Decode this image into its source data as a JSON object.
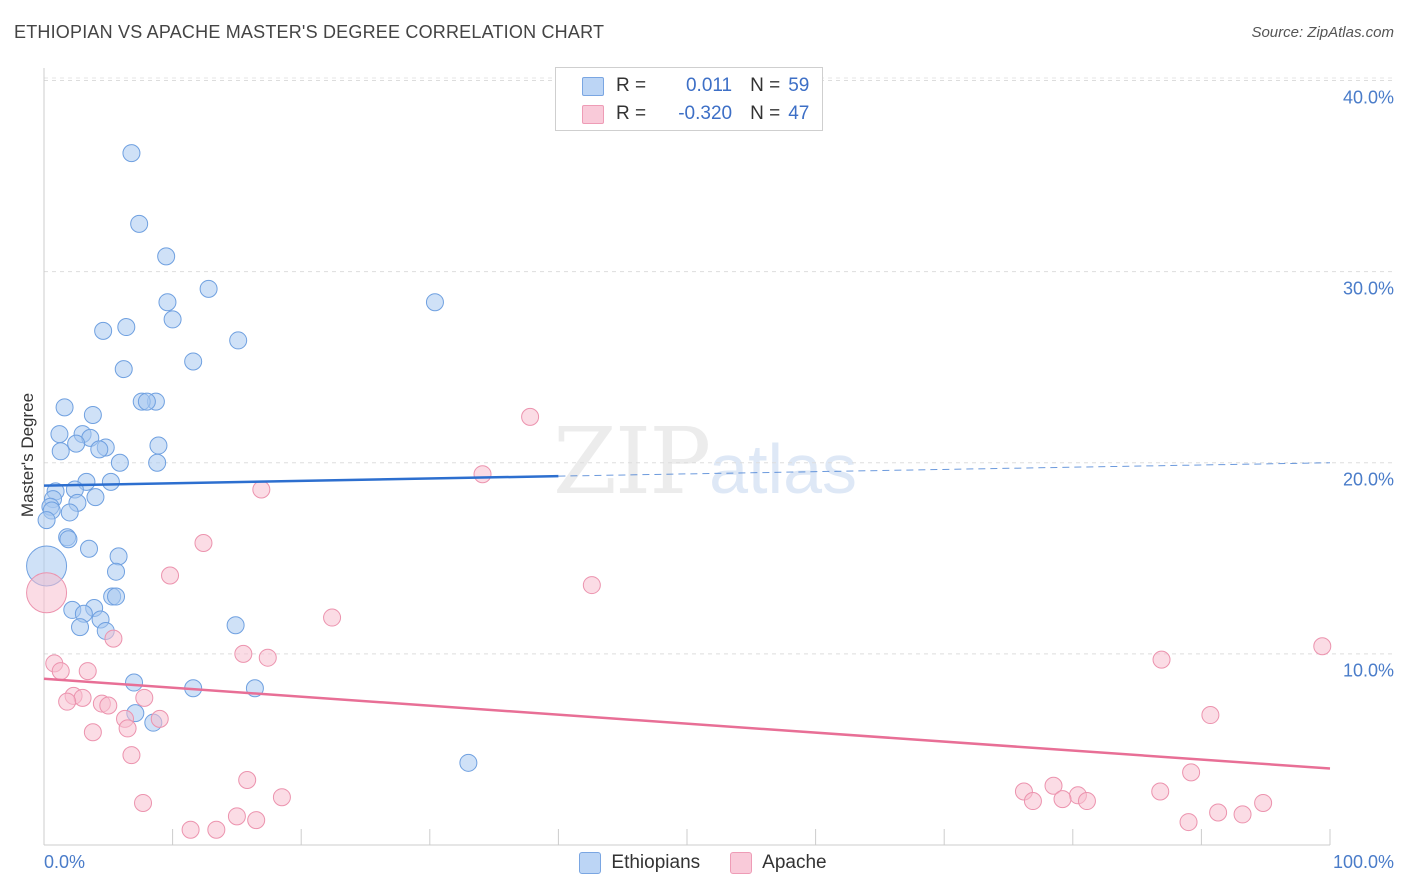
{
  "chart_data": {
    "type": "scatter",
    "title": "ETHIOPIAN VS APACHE MASTER'S DEGREE CORRELATION CHART",
    "source": "Source: ZipAtlas.com",
    "ylabel": "Master's Degree",
    "xlabel": "",
    "xlim": [
      0,
      100
    ],
    "ylim": [
      0,
      40
    ],
    "x_tick_labels": {
      "min": "0.0%",
      "max": "100.0%"
    },
    "y_tick_labels": [
      {
        "value": 10,
        "label": "10.0%"
      },
      {
        "value": 20,
        "label": "20.0%"
      },
      {
        "value": 30,
        "label": "30.0%"
      },
      {
        "value": 40,
        "label": "40.0%"
      }
    ],
    "watermark": {
      "zip": "ZIP",
      "atlas": "atlas"
    },
    "legend": {
      "stats": [
        {
          "r_label": "R =",
          "r_value": "0.011",
          "n_label": "N =",
          "n_value": "59"
        },
        {
          "r_label": "R =",
          "r_value": "-0.320",
          "n_label": "N =",
          "n_value": "47"
        }
      ]
    },
    "series": [
      {
        "name": "Ethiopians",
        "color": "#a8c8f0",
        "stroke": "#6fa0e0",
        "trend_color": "#2d6fcf",
        "trend": {
          "x0": 0,
          "y0": 18.8,
          "x1": 40,
          "y1": 19.3,
          "dash_to": 100,
          "dash_y": 20.0
        },
        "points": [
          [
            6.8,
            36.2
          ],
          [
            7.4,
            32.5
          ],
          [
            9.5,
            30.8
          ],
          [
            12.8,
            29.1
          ],
          [
            9.6,
            28.4
          ],
          [
            30.4,
            28.4
          ],
          [
            10.0,
            27.5
          ],
          [
            6.4,
            27.1
          ],
          [
            4.6,
            26.9
          ],
          [
            15.1,
            26.4
          ],
          [
            11.6,
            25.3
          ],
          [
            6.2,
            24.9
          ],
          [
            8.7,
            23.2
          ],
          [
            7.6,
            23.2
          ],
          [
            8.0,
            23.2
          ],
          [
            1.6,
            22.9
          ],
          [
            3.8,
            22.5
          ],
          [
            1.2,
            21.5
          ],
          [
            3.0,
            21.5
          ],
          [
            3.6,
            21.3
          ],
          [
            2.5,
            21.0
          ],
          [
            4.8,
            20.8
          ],
          [
            8.9,
            20.9
          ],
          [
            4.3,
            20.7
          ],
          [
            1.3,
            20.6
          ],
          [
            5.9,
            20.0
          ],
          [
            8.8,
            20.0
          ],
          [
            3.3,
            19.0
          ],
          [
            5.2,
            19.0
          ],
          [
            2.4,
            18.6
          ],
          [
            0.9,
            18.5
          ],
          [
            0.7,
            18.1
          ],
          [
            4.0,
            18.2
          ],
          [
            2.6,
            17.9
          ],
          [
            0.5,
            17.7
          ],
          [
            0.6,
            17.5
          ],
          [
            2.0,
            17.4
          ],
          [
            0.2,
            17.0
          ],
          [
            1.8,
            16.1
          ],
          [
            1.9,
            16.0
          ],
          [
            3.5,
            15.5
          ],
          [
            5.8,
            15.1
          ],
          [
            0.2,
            14.6
          ],
          [
            5.6,
            14.3
          ],
          [
            5.3,
            13.0
          ],
          [
            5.6,
            13.0
          ],
          [
            2.2,
            12.3
          ],
          [
            3.9,
            12.4
          ],
          [
            3.1,
            12.1
          ],
          [
            4.4,
            11.8
          ],
          [
            14.9,
            11.5
          ],
          [
            2.8,
            11.4
          ],
          [
            4.8,
            11.2
          ],
          [
            7.0,
            8.5
          ],
          [
            11.6,
            8.2
          ],
          [
            16.4,
            8.2
          ],
          [
            7.1,
            6.9
          ],
          [
            8.5,
            6.4
          ],
          [
            33.0,
            4.3
          ]
        ]
      },
      {
        "name": "Apache",
        "color": "#f7bfd0",
        "stroke": "#ec93ae",
        "trend_color": "#e86f96",
        "trend": {
          "x0": 0,
          "y0": 8.7,
          "x1": 100,
          "y1": 4.0
        },
        "points": [
          [
            37.8,
            22.4
          ],
          [
            34.1,
            19.4
          ],
          [
            16.9,
            18.6
          ],
          [
            12.4,
            15.8
          ],
          [
            9.8,
            14.1
          ],
          [
            42.6,
            13.6
          ],
          [
            0.2,
            13.2
          ],
          [
            22.4,
            11.9
          ],
          [
            5.4,
            10.8
          ],
          [
            99.4,
            10.4
          ],
          [
            15.5,
            10.0
          ],
          [
            17.4,
            9.8
          ],
          [
            86.9,
            9.7
          ],
          [
            0.8,
            9.5
          ],
          [
            1.3,
            9.1
          ],
          [
            3.4,
            9.1
          ],
          [
            2.3,
            7.8
          ],
          [
            3.0,
            7.7
          ],
          [
            7.8,
            7.7
          ],
          [
            1.8,
            7.5
          ],
          [
            4.5,
            7.4
          ],
          [
            5.0,
            7.3
          ],
          [
            90.7,
            6.8
          ],
          [
            6.3,
            6.6
          ],
          [
            9.0,
            6.6
          ],
          [
            6.5,
            6.1
          ],
          [
            3.8,
            5.9
          ],
          [
            6.8,
            4.7
          ],
          [
            89.2,
            3.8
          ],
          [
            15.8,
            3.4
          ],
          [
            78.5,
            3.1
          ],
          [
            76.2,
            2.8
          ],
          [
            86.8,
            2.8
          ],
          [
            80.4,
            2.6
          ],
          [
            18.5,
            2.5
          ],
          [
            79.2,
            2.4
          ],
          [
            76.9,
            2.3
          ],
          [
            81.1,
            2.3
          ],
          [
            7.7,
            2.2
          ],
          [
            94.8,
            2.2
          ],
          [
            91.3,
            1.7
          ],
          [
            93.2,
            1.6
          ],
          [
            15.0,
            1.5
          ],
          [
            16.5,
            1.3
          ],
          [
            89.0,
            1.2
          ],
          [
            11.4,
            0.8
          ],
          [
            13.4,
            0.8
          ]
        ]
      }
    ]
  }
}
